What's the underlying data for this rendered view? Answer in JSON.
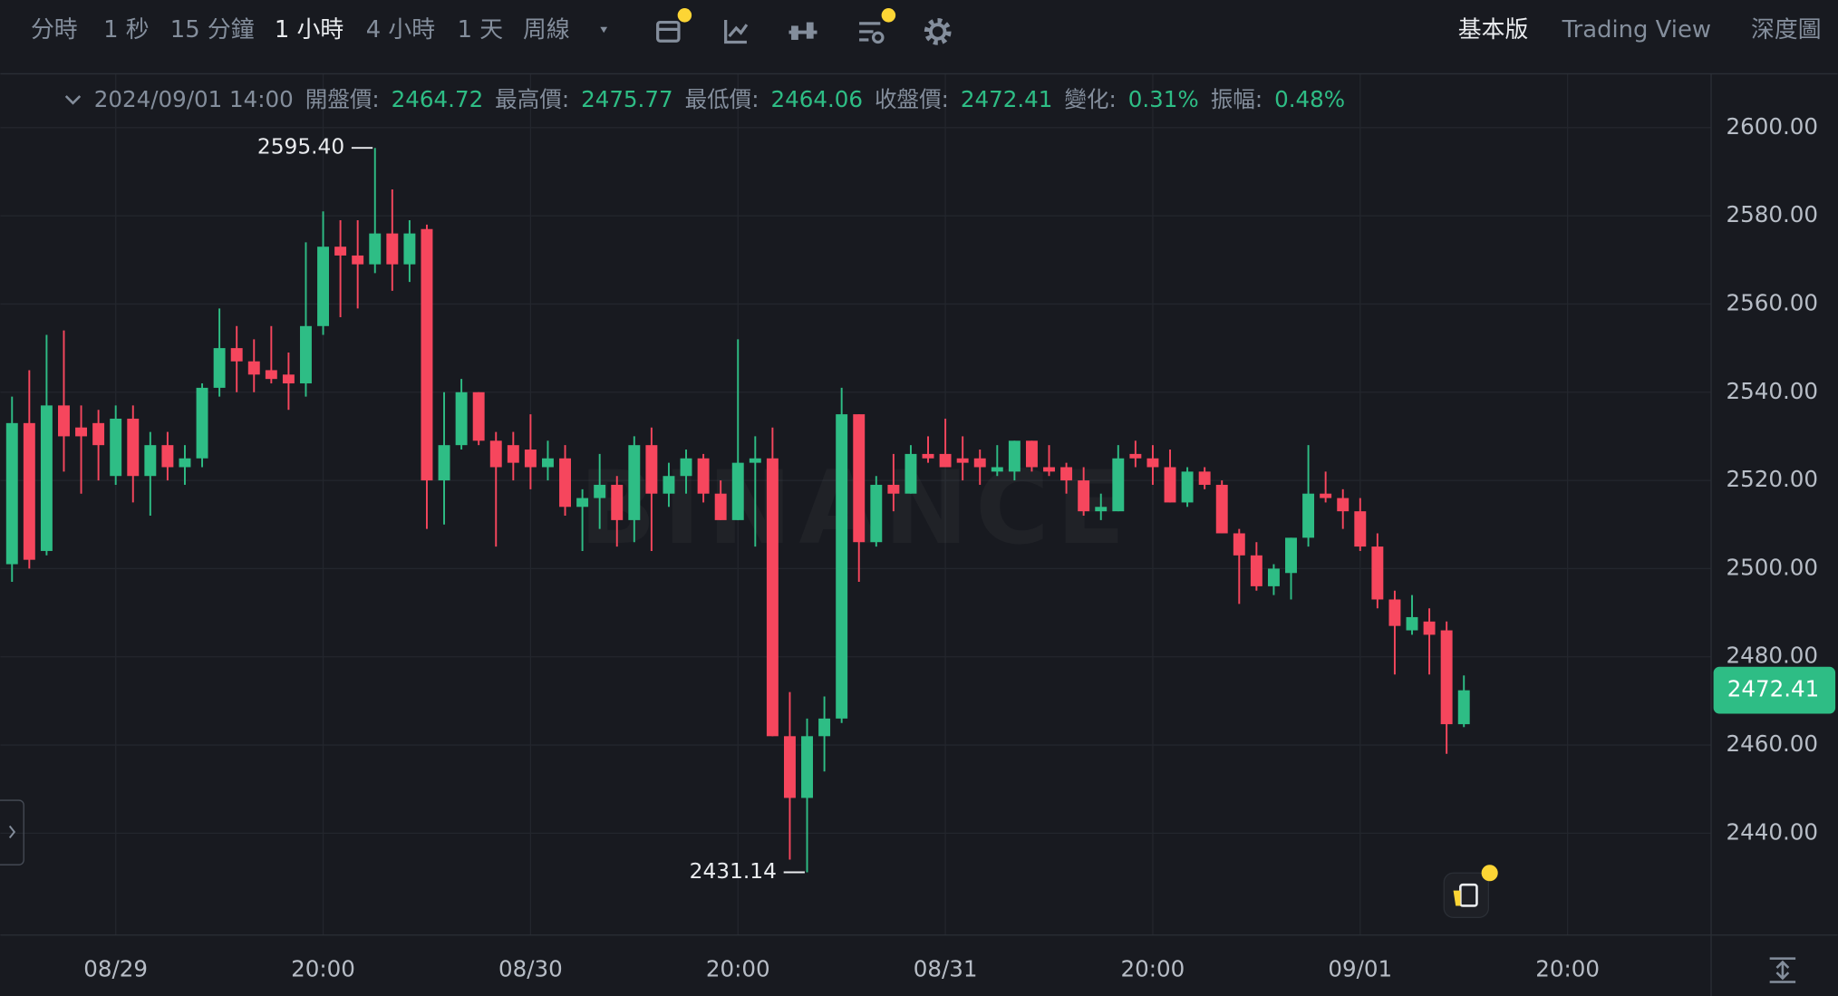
{
  "toolbar": {
    "intervals": [
      "分時",
      "1 秒",
      "15 分鐘",
      "1 小時",
      "4 小時",
      "1 天",
      "周線"
    ],
    "active_interval": 3,
    "views": [
      "基本版",
      "Trading View",
      "深度圖"
    ],
    "active_view": 0
  },
  "info": {
    "time": "2024/09/01 14:00",
    "open_label": "開盤價:",
    "high_label": "最高價:",
    "low_label": "最低價:",
    "close_label": "收盤價:",
    "change_label": "變化:",
    "change": {
      "value": 0.31,
      "label": "0.31%"
    },
    "amplitude_label": "振幅:",
    "amplitude": {
      "value": 0.48,
      "label": "0.48%"
    }
  },
  "watermark": "BINANCE",
  "chart_data": {
    "type": "candlestick",
    "up_color": "#2ebd85",
    "down_color": "#f6465d",
    "grid": true,
    "categories": [
      null,
      null,
      null,
      null,
      null,
      null,
      "08/29",
      null,
      null,
      null,
      null,
      null,
      null,
      null,
      null,
      null,
      null,
      null,
      "20:00",
      null,
      null,
      null,
      null,
      null,
      null,
      null,
      null,
      null,
      null,
      null,
      "08/30",
      null,
      null,
      null,
      null,
      null,
      null,
      null,
      null,
      null,
      null,
      null,
      "20:00",
      null,
      null,
      null,
      null,
      null,
      null,
      null,
      null,
      null,
      null,
      null,
      "08/31",
      null,
      null,
      null,
      null,
      null,
      null,
      null,
      null,
      null,
      null,
      null,
      "20:00",
      null,
      null,
      null,
      null,
      null,
      null,
      null,
      null,
      null,
      null,
      null,
      "09/01",
      null,
      null,
      null,
      null,
      null,
      null,
      null,
      null,
      null,
      null,
      null,
      "20:00"
    ],
    "open": [
      2501,
      2533,
      2504,
      2537,
      2532,
      2533,
      2521,
      2534,
      2521,
      2528,
      2523,
      2525,
      2541,
      2550,
      2547,
      2545,
      2544,
      2542,
      2555,
      2573,
      2571,
      2569,
      2576,
      2569,
      2577,
      2520,
      2528,
      2540,
      2529,
      2528,
      2527,
      2523,
      2525,
      2514,
      2516,
      2519,
      2511,
      2528,
      2517,
      2521,
      2525,
      2517,
      2511,
      2524,
      2525,
      2462,
      2448,
      2462,
      2466,
      2535,
      2506,
      2519,
      2517,
      2526,
      2526,
      2525,
      2525,
      2522,
      2522,
      2529,
      2523,
      2523,
      2520,
      2513,
      2513,
      2526,
      2525,
      2523,
      2515,
      2522,
      2519,
      2508,
      2503,
      2496,
      2499,
      2507,
      2517,
      2516,
      2513,
      2505,
      2493,
      2486,
      2488,
      2486,
      2464.72,
      null,
      null,
      null,
      null,
      null,
      null
    ],
    "high": [
      2539,
      2545,
      2553,
      2554,
      2537,
      2536,
      2537,
      2537,
      2531,
      2531,
      2528,
      2542,
      2559,
      2555,
      2552,
      2555,
      2549,
      2574,
      2581,
      2579,
      2579,
      2595.4,
      2586,
      2579,
      2578,
      2540,
      2543,
      2540,
      2531,
      2531,
      2535,
      2529,
      2528,
      2518,
      2526,
      2521,
      2530,
      2532,
      2524,
      2527,
      2526,
      2520,
      2552,
      2530,
      2532,
      2472,
      2466,
      2471,
      2541,
      2535,
      2521,
      2526,
      2528,
      2530,
      2534,
      2530,
      2527,
      2528,
      2529,
      2529,
      2528,
      2524,
      2523,
      2517,
      2528,
      2529,
      2528,
      2527,
      2523,
      2523,
      2520,
      2509,
      2506,
      2501,
      2507,
      2528,
      2522,
      2518,
      2516,
      2508,
      2495,
      2494,
      2491,
      2488,
      2475.77,
      null,
      null,
      null,
      null,
      null,
      null
    ],
    "low": [
      2497,
      2500,
      2503,
      2522,
      2517,
      2520,
      2519,
      2515,
      2512,
      2520,
      2519,
      2523,
      2539,
      2540,
      2540,
      2542,
      2536,
      2539,
      2553,
      2557,
      2559,
      2567,
      2563,
      2565,
      2509,
      2510,
      2527,
      2528,
      2505,
      2520,
      2518,
      2520,
      2512,
      2504,
      2509,
      2505,
      2506,
      2504,
      2514,
      2517,
      2515,
      2511,
      2511,
      2505,
      2462,
      2434,
      2431.14,
      2454,
      2465,
      2497,
      2505,
      2513,
      2517,
      2524,
      2523,
      2520,
      2519,
      2521,
      2520,
      2522,
      2521,
      2517,
      2512,
      2511,
      2513,
      2523,
      2519,
      2515,
      2514,
      2518,
      2508,
      2492,
      2495,
      2494,
      2493,
      2505,
      2515,
      2509,
      2504,
      2491,
      2476,
      2485,
      2476,
      2458,
      2464.06,
      null,
      null,
      null,
      null,
      null,
      null
    ],
    "close": [
      2533,
      2502,
      2537,
      2530,
      2530,
      2528,
      2534,
      2521,
      2528,
      2523,
      2525,
      2541,
      2550,
      2547,
      2544,
      2543,
      2542,
      2555,
      2573,
      2571,
      2569,
      2576,
      2569,
      2576,
      2520,
      2528,
      2540,
      2529,
      2523,
      2524,
      2523,
      2525,
      2514,
      2516,
      2519,
      2511,
      2528,
      2517,
      2521,
      2525,
      2517,
      2511,
      2524,
      2525,
      2462,
      2448,
      2462,
      2466,
      2535,
      2506,
      2519,
      2517,
      2526,
      2525,
      2523,
      2524,
      2523,
      2523,
      2529,
      2523,
      2522,
      2520,
      2513,
      2514,
      2525,
      2525,
      2523,
      2515,
      2522,
      2519,
      2508,
      2503,
      2496,
      2500,
      2507,
      2517,
      2516,
      2513,
      2505,
      2493,
      2487,
      2489,
      2485,
      2464.72,
      2472.41,
      null,
      null,
      null,
      null,
      null,
      null
    ],
    "ylim": [
      2416.9,
      2612.2
    ],
    "yticks": [
      {
        "value": 2600,
        "label": "2600.00"
      },
      {
        "value": 2580,
        "label": "2580.00"
      },
      {
        "value": 2560,
        "label": "2560.00"
      },
      {
        "value": 2540,
        "label": "2540.00"
      },
      {
        "value": 2520,
        "label": "2520.00"
      },
      {
        "value": 2500,
        "label": "2500.00"
      },
      {
        "value": 2480,
        "label": "2480.00"
      },
      {
        "value": 2460,
        "label": "2460.00"
      },
      {
        "value": 2440,
        "label": "2440.00"
      }
    ],
    "annotations": [
      {
        "value": 2595.4,
        "label": "2595.40"
      },
      {
        "value": 2431.14,
        "label": "2431.14"
      }
    ]
  }
}
